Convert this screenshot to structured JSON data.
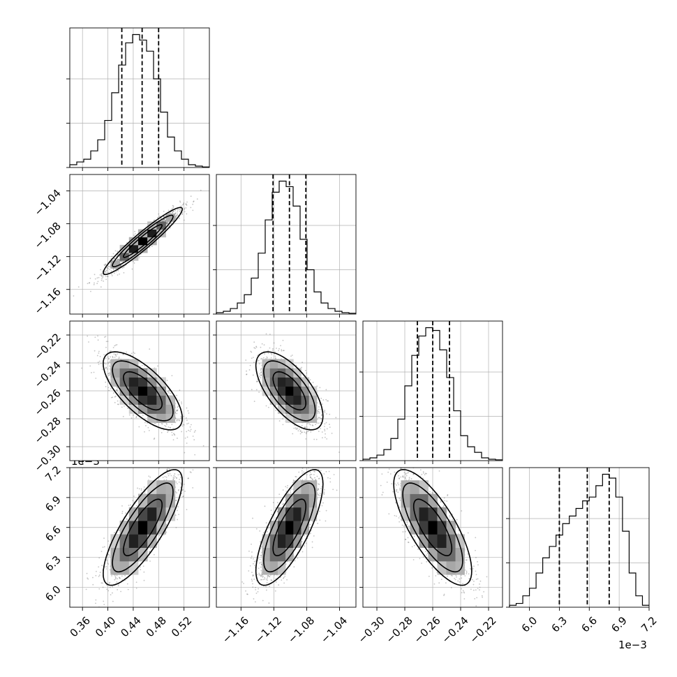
{
  "chart_data": {
    "type": "corner",
    "parameters": [
      {
        "range": [
          0.34,
          0.56
        ],
        "ticks": [
          "0.36",
          "0.40",
          "0.44",
          "0.48",
          "0.52"
        ],
        "tick_values": [
          0.36,
          0.4,
          0.44,
          0.48,
          0.52
        ],
        "scale_label": ""
      },
      {
        "range": [
          -1.19,
          -1.02
        ],
        "ticks": [
          "−1.16",
          "−1.12",
          "−1.08",
          "−1.04"
        ],
        "tick_values": [
          -1.16,
          -1.12,
          -1.08,
          -1.04
        ],
        "scale_label": ""
      },
      {
        "range": [
          -0.31,
          -0.21
        ],
        "ticks": [
          "−0.30",
          "−0.28",
          "−0.26",
          "−0.24",
          "−0.22"
        ],
        "tick_values": [
          -0.3,
          -0.28,
          -0.26,
          -0.24,
          -0.22
        ],
        "scale_label": ""
      },
      {
        "range": [
          5.8,
          7.2
        ],
        "ticks": [
          "6.0",
          "6.3",
          "6.6",
          "6.9",
          "7.2"
        ],
        "tick_values": [
          6.0,
          6.3,
          6.6,
          6.9,
          7.2
        ],
        "scale_label": "1e−3"
      }
    ],
    "histograms": [
      {
        "quantiles": [
          0.422,
          0.454,
          0.48
        ],
        "counts": [
          1,
          2,
          3,
          6,
          10,
          17,
          27,
          37,
          45,
          48,
          46,
          42,
          32,
          20,
          11,
          6,
          3,
          1,
          0.5,
          0.2
        ]
      },
      {
        "quantiles": [
          -1.121,
          -1.101,
          -1.081
        ],
        "counts": [
          0.5,
          1,
          2,
          4,
          7,
          13,
          22,
          34,
          44,
          48,
          46,
          39,
          27,
          16,
          8,
          4,
          2,
          1,
          0.5,
          0.3
        ]
      },
      {
        "quantiles": [
          -0.271,
          -0.26,
          -0.248
        ],
        "counts": [
          0.5,
          1,
          2,
          4,
          8,
          15,
          27,
          38,
          45,
          48,
          47,
          40,
          30,
          18,
          9,
          5,
          3,
          1,
          0.5,
          0.3
        ]
      },
      {
        "quantiles": [
          6.3,
          6.58,
          6.8
        ],
        "counts": [
          0.5,
          1,
          3,
          5,
          9,
          13,
          16,
          19,
          22,
          24,
          26,
          28,
          29,
          32,
          35,
          34,
          29,
          20,
          9,
          3,
          0.5
        ]
      }
    ],
    "scatter_correlations": [
      [
        1,
        0
      ],
      [
        2,
        0
      ],
      [
        2,
        1
      ],
      [
        3,
        0
      ],
      [
        3,
        1
      ],
      [
        3,
        2
      ]
    ],
    "correlation_signs": {
      "1-0": 0.95,
      "2-0": -0.7,
      "2-1": -0.65,
      "3-0": 0.8,
      "3-1": 0.75,
      "3-2": -0.75
    },
    "means": [
      0.455,
      -1.101,
      -0.26,
      6.6
    ],
    "stds": [
      0.029,
      0.019,
      0.013,
      0.27
    ],
    "grid": true,
    "scale_labels": {
      "row3_y": "1e−3",
      "col3_x": "1e−3"
    }
  },
  "colors": {
    "line": "#000000",
    "grid": "#b0b0b0",
    "points": "#555555"
  }
}
